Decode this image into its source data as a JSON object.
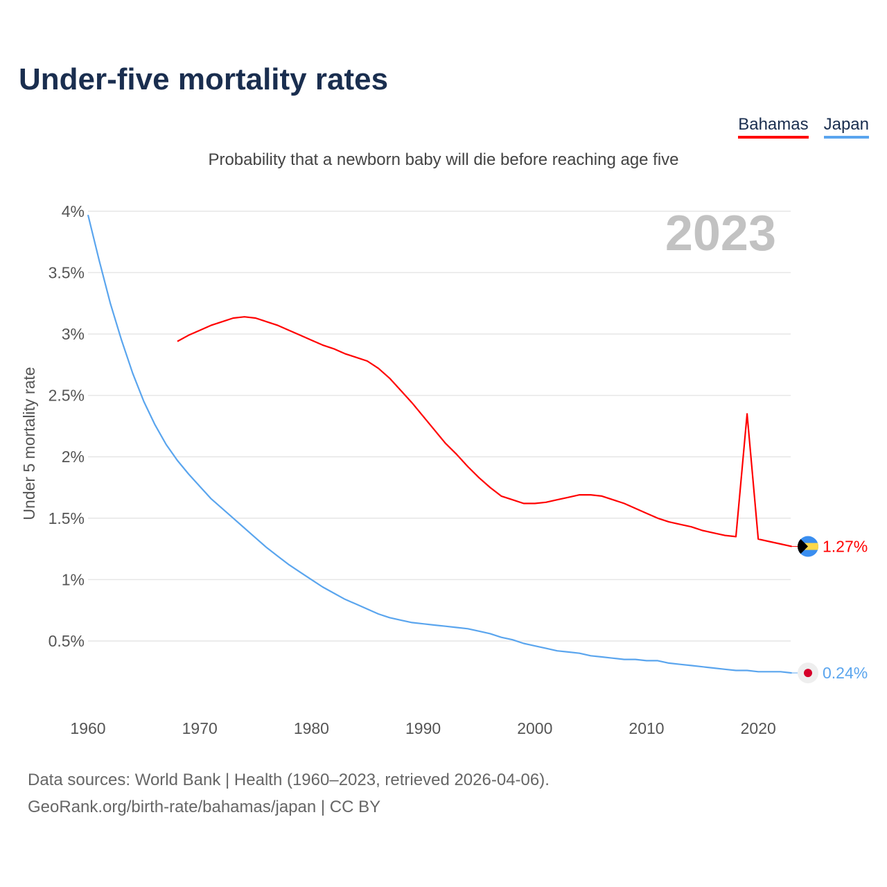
{
  "title": "Under-five mortality rates",
  "subtitle": "Probability that a newborn baby will die before reaching age five",
  "footer": {
    "line1": "Data sources: World Bank | Health (1960–2023, retrieved 2026-04-06).",
    "line2": "GeoRank.org/birth-rate/bahamas/japan | CC BY"
  },
  "chart_data": {
    "type": "line",
    "title": "Under-five mortality rates",
    "ylabel": "Under 5 mortality rate",
    "xlabel": "",
    "year_watermark": "2023",
    "ylim": [
      0,
      4
    ],
    "xlim": [
      1960,
      2023
    ],
    "y_ticks": [
      {
        "v": 0.5,
        "label": "0.5%"
      },
      {
        "v": 1,
        "label": "1%"
      },
      {
        "v": 1.5,
        "label": "1.5%"
      },
      {
        "v": 2,
        "label": "2%"
      },
      {
        "v": 2.5,
        "label": "2.5%"
      },
      {
        "v": 3,
        "label": "3%"
      },
      {
        "v": 3.5,
        "label": "3.5%"
      },
      {
        "v": 4,
        "label": "4%"
      }
    ],
    "x_ticks": [
      {
        "v": 1960,
        "label": "1960"
      },
      {
        "v": 1970,
        "label": "1970"
      },
      {
        "v": 1980,
        "label": "1980"
      },
      {
        "v": 1990,
        "label": "1990"
      },
      {
        "v": 2000,
        "label": "2000"
      },
      {
        "v": 2010,
        "label": "2010"
      },
      {
        "v": 2020,
        "label": "2020"
      }
    ],
    "legend_position": "top-right",
    "series": [
      {
        "name": "Bahamas",
        "color": "#ff0000",
        "end_label": "1.27%",
        "flag": "bahamas-flag-icon",
        "x": [
          1968,
          1969,
          1970,
          1971,
          1972,
          1973,
          1974,
          1975,
          1976,
          1977,
          1978,
          1979,
          1980,
          1981,
          1982,
          1983,
          1984,
          1985,
          1986,
          1987,
          1988,
          1989,
          1990,
          1991,
          1992,
          1993,
          1994,
          1995,
          1996,
          1997,
          1998,
          1999,
          2000,
          2001,
          2002,
          2003,
          2004,
          2005,
          2006,
          2007,
          2008,
          2009,
          2010,
          2011,
          2012,
          2013,
          2014,
          2015,
          2016,
          2017,
          2018,
          2019,
          2020,
          2021,
          2022,
          2023
        ],
        "values": [
          2.94,
          2.99,
          3.03,
          3.07,
          3.1,
          3.13,
          3.14,
          3.13,
          3.1,
          3.07,
          3.03,
          2.99,
          2.95,
          2.91,
          2.88,
          2.84,
          2.81,
          2.78,
          2.72,
          2.64,
          2.54,
          2.44,
          2.33,
          2.22,
          2.11,
          2.02,
          1.92,
          1.83,
          1.75,
          1.68,
          1.65,
          1.62,
          1.62,
          1.63,
          1.65,
          1.67,
          1.69,
          1.69,
          1.68,
          1.65,
          1.62,
          1.58,
          1.54,
          1.5,
          1.47,
          1.45,
          1.43,
          1.4,
          1.38,
          1.36,
          1.35,
          2.35,
          1.33,
          1.31,
          1.29,
          1.27
        ]
      },
      {
        "name": "Japan",
        "color": "#5aa5ee",
        "end_label": "0.24%",
        "flag": "japan-flag-icon",
        "x": [
          1960,
          1961,
          1962,
          1963,
          1964,
          1965,
          1966,
          1967,
          1968,
          1969,
          1970,
          1971,
          1972,
          1973,
          1974,
          1975,
          1976,
          1977,
          1978,
          1979,
          1980,
          1981,
          1982,
          1983,
          1984,
          1985,
          1986,
          1987,
          1988,
          1989,
          1990,
          1991,
          1992,
          1993,
          1994,
          1995,
          1996,
          1997,
          1998,
          1999,
          2000,
          2001,
          2002,
          2003,
          2004,
          2005,
          2006,
          2007,
          2008,
          2009,
          2010,
          2011,
          2012,
          2013,
          2014,
          2015,
          2016,
          2017,
          2018,
          2019,
          2020,
          2021,
          2022,
          2023
        ],
        "values": [
          3.97,
          3.6,
          3.25,
          2.95,
          2.68,
          2.45,
          2.26,
          2.1,
          1.97,
          1.86,
          1.76,
          1.66,
          1.58,
          1.5,
          1.42,
          1.34,
          1.26,
          1.19,
          1.12,
          1.06,
          1.0,
          0.94,
          0.89,
          0.84,
          0.8,
          0.76,
          0.72,
          0.69,
          0.67,
          0.65,
          0.64,
          0.63,
          0.62,
          0.61,
          0.6,
          0.58,
          0.56,
          0.53,
          0.51,
          0.48,
          0.46,
          0.44,
          0.42,
          0.41,
          0.4,
          0.38,
          0.37,
          0.36,
          0.35,
          0.35,
          0.34,
          0.34,
          0.32,
          0.31,
          0.3,
          0.29,
          0.28,
          0.27,
          0.26,
          0.26,
          0.25,
          0.25,
          0.25,
          0.24
        ]
      }
    ]
  }
}
